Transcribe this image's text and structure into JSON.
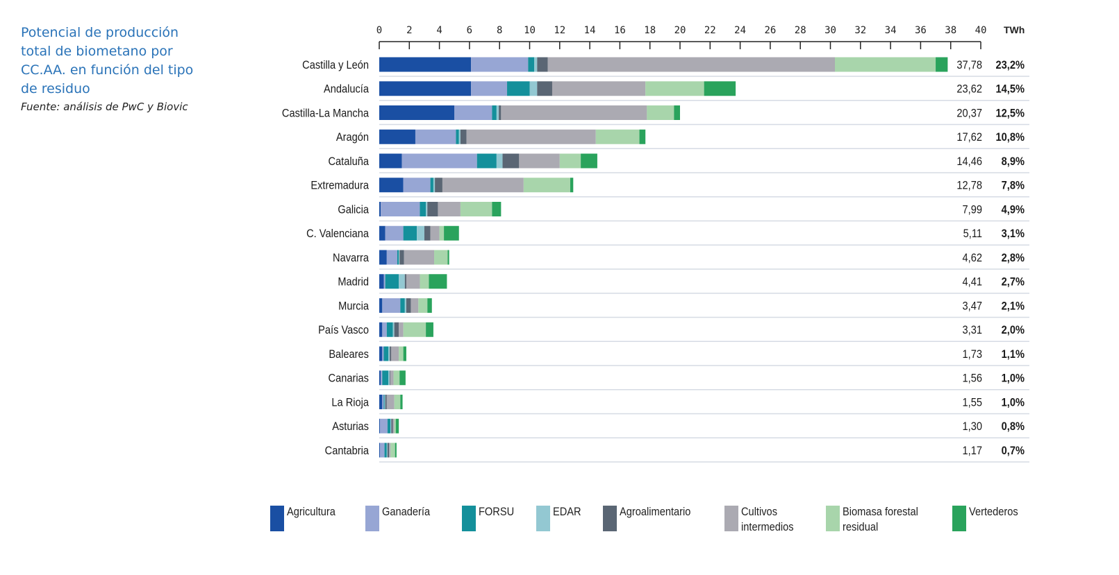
{
  "title": "Potencial de producción total de biometano por CC.AA. en función del tipo de residuo",
  "title_lines": [
    "Potencial de producción",
    "total de biometano por",
    "CC.AA. en función del tipo",
    "de residuo"
  ],
  "source": "Fuente: análisis de PwC y Biovic",
  "chart_data": {
    "type": "bar",
    "orientation": "horizontal",
    "stacked": true,
    "title": "Potencial de producción total de biometano por CC.AA. en función del tipo de residuo",
    "unit": "TWh",
    "xlim": [
      0,
      40
    ],
    "xticks": [
      0,
      2,
      4,
      6,
      8,
      10,
      12,
      14,
      16,
      18,
      20,
      22,
      24,
      26,
      28,
      30,
      32,
      34,
      36,
      38,
      40
    ],
    "axis_position": "top",
    "grid": false,
    "legend_position": "bottom",
    "categories": [
      "Castilla y León",
      "Andalucía",
      "Castilla-La Mancha",
      "Aragón",
      "Cataluña",
      "Extremadura",
      "Galicia",
      "C. Valenciana",
      "Navarra",
      "Madrid",
      "Murcia",
      "País Vasco",
      "Baleares",
      "Canarias",
      "La Rioja",
      "Asturias",
      "Cantabria"
    ],
    "totals": [
      "37,78",
      "23,62",
      "20,37",
      "17,62",
      "14,46",
      "12,78",
      "7,99",
      "5,11",
      "4,62",
      "4,41",
      "3,47",
      "3,31",
      "1,73",
      "1,56",
      "1,55",
      "1,30",
      "1,17"
    ],
    "shares": [
      "23,2%",
      "14,5%",
      "12,5%",
      "10,8%",
      "8,9%",
      "7,8%",
      "4,9%",
      "3,1%",
      "2,8%",
      "2,7%",
      "2,1%",
      "2,0%",
      "1,1%",
      "1,0%",
      "1,0%",
      "0,8%",
      "0,7%"
    ],
    "series": [
      {
        "name": "Agricultura",
        "color": "#1a4fa3",
        "values": [
          6.1,
          6.1,
          5.0,
          2.4,
          1.5,
          1.6,
          0.1,
          0.4,
          0.5,
          0.3,
          0.2,
          0.2,
          0.2,
          0.1,
          0.2,
          0.05,
          0.05
        ]
      },
      {
        "name": "Ganadería",
        "color": "#97a6d4",
        "values": [
          3.8,
          2.4,
          2.5,
          2.7,
          5.0,
          1.8,
          2.6,
          1.2,
          0.7,
          0.1,
          1.2,
          0.3,
          0.1,
          0.1,
          0.1,
          0.5,
          0.3
        ]
      },
      {
        "name": "FORSU",
        "color": "#14909b",
        "values": [
          0.4,
          1.5,
          0.3,
          0.2,
          1.3,
          0.2,
          0.4,
          0.9,
          0.1,
          0.9,
          0.3,
          0.4,
          0.3,
          0.4,
          0.05,
          0.2,
          0.15
        ]
      },
      {
        "name": "EDAR",
        "color": "#93c8d2",
        "values": [
          0.2,
          0.5,
          0.15,
          0.1,
          0.4,
          0.1,
          0.1,
          0.5,
          0.05,
          0.4,
          0.1,
          0.1,
          0.1,
          0.1,
          0.05,
          0.05,
          0.05
        ]
      },
      {
        "name": "Agroalimentario",
        "color": "#5a6674",
        "values": [
          0.7,
          1.0,
          0.15,
          0.4,
          1.1,
          0.5,
          0.7,
          0.4,
          0.3,
          0.1,
          0.3,
          0.3,
          0.1,
          0.05,
          0.1,
          0.1,
          0.1
        ]
      },
      {
        "name": "Cultivos intermedios",
        "color": "#abaab2",
        "values": [
          19.1,
          6.2,
          9.7,
          8.6,
          2.7,
          5.4,
          1.5,
          0.6,
          2.0,
          0.9,
          0.5,
          0.3,
          0.5,
          0.2,
          0.5,
          0.1,
          0.1
        ]
      },
      {
        "name": "Biomasa forestal residual",
        "color": "#a8d5ab",
        "values": [
          6.7,
          3.9,
          1.8,
          2.9,
          1.4,
          3.1,
          2.1,
          0.3,
          0.9,
          0.6,
          0.6,
          1.5,
          0.3,
          0.4,
          0.4,
          0.1,
          0.3
        ]
      },
      {
        "name": "Vertederos",
        "color": "#2aa35c",
        "values": [
          0.8,
          2.1,
          0.4,
          0.4,
          1.1,
          0.2,
          0.6,
          1.0,
          0.1,
          1.2,
          0.3,
          0.5,
          0.2,
          0.4,
          0.15,
          0.2,
          0.1
        ]
      }
    ]
  },
  "legend": [
    {
      "label": [
        "Agricultura"
      ],
      "color": "#1a4fa3"
    },
    {
      "label": [
        "Ganadería"
      ],
      "color": "#97a6d4"
    },
    {
      "label": [
        "FORSU"
      ],
      "color": "#14909b"
    },
    {
      "label": [
        "EDAR"
      ],
      "color": "#93c8d2"
    },
    {
      "label": [
        "Agroalimentario"
      ],
      "color": "#5a6674"
    },
    {
      "label": [
        "Cultivos",
        "intermedios"
      ],
      "color": "#abaab2"
    },
    {
      "label": [
        "Biomasa forestal",
        "residual"
      ],
      "color": "#a8d5ab"
    },
    {
      "label": [
        "Vertederos"
      ],
      "color": "#2aa35c"
    }
  ]
}
